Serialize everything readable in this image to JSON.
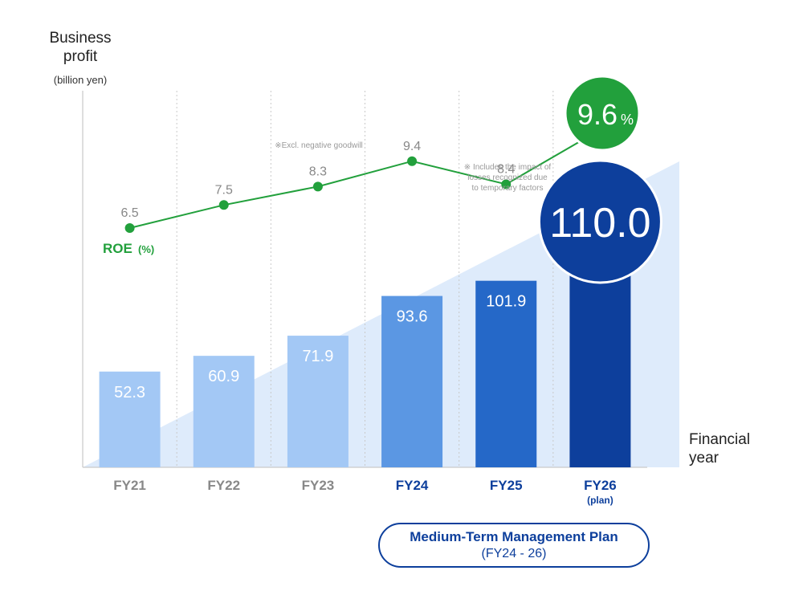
{
  "y_axis": {
    "title_line1": "Business",
    "title_line2": "profit",
    "unit": "(billion yen)"
  },
  "x_axis": {
    "title_line1": "Financial",
    "title_line2": "year"
  },
  "plan": {
    "title": "Medium-Term Management Plan",
    "range": "(FY24 - 26)"
  },
  "colors": {
    "bar_past": "#a3c8f5",
    "bar_fy24": "#5b97e3",
    "bar_fy25": "#2568c8",
    "bar_fy26": "#0d3f9c",
    "roe_line": "#22a03c",
    "label_past": "#888888",
    "label_plan": "#0d3f9c",
    "background_wedge": "#deebfb"
  },
  "chart_data": {
    "type": "bar",
    "categories": [
      "FY21",
      "FY22",
      "FY23",
      "FY24",
      "FY25",
      "FY26"
    ],
    "category_sublabels": [
      "",
      "",
      "",
      "",
      "",
      "(plan)"
    ],
    "series": [
      {
        "values": [
          52.3,
          60.9,
          71.9,
          93.6,
          101.9,
          110.0
        ]
      },
      {
        "name": "ROE",
        "unit": "(%)",
        "type": "line",
        "values": [
          6.5,
          7.5,
          8.3,
          9.4,
          8.4,
          9.6
        ]
      }
    ],
    "value_labels": [
      "52.3",
      "60.9",
      "71.9",
      "93.6",
      "101.9",
      "110.0"
    ],
    "roe_labels": [
      "6.5",
      "7.5",
      "8.3",
      "9.4",
      "8.4",
      "9.6"
    ],
    "roe_unit_suffix": "%",
    "annotations": [
      {
        "category": "FY23",
        "text": "※Excl. negative goodwill"
      },
      {
        "category": "FY25",
        "lines": [
          "※ Includes the impact of",
          "losses recognized due",
          "to temporary factors"
        ]
      }
    ],
    "ylim": [
      0,
      120
    ],
    "grid": "vertical-dotted"
  }
}
